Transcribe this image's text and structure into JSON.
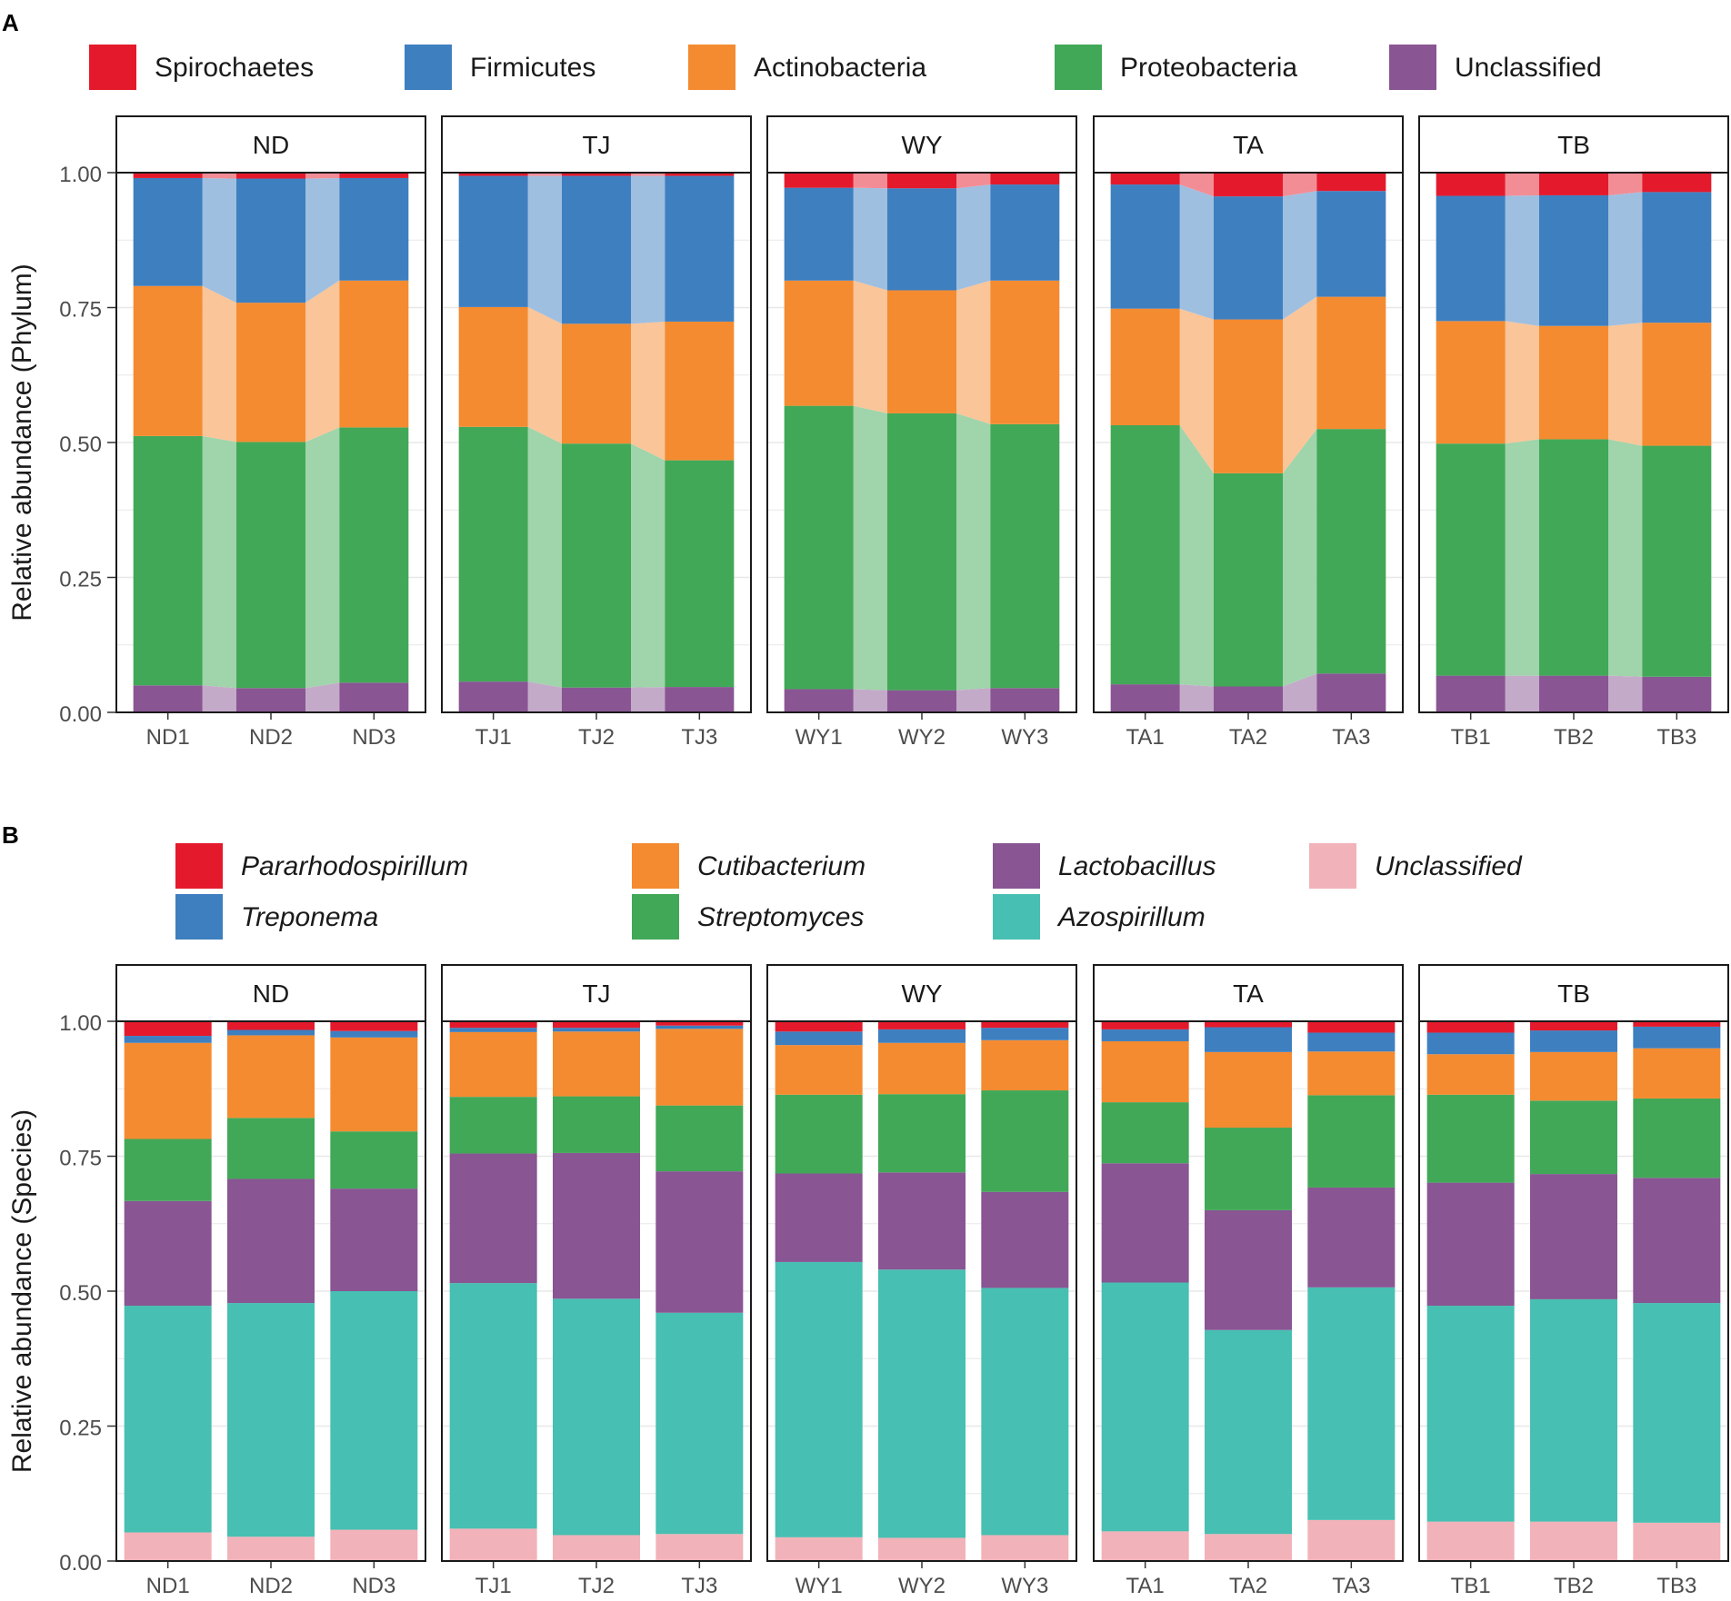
{
  "figure": {
    "panels": [
      {
        "label": "A",
        "ylabel": "Relative abundance (Phylum)",
        "yticks": [
          "0.00",
          "0.25",
          "0.50",
          "0.75",
          "1.00"
        ],
        "legend": [
          {
            "name": "Spirochaetes",
            "color": "#E41A2C",
            "italic": false
          },
          {
            "name": "Firmicutes",
            "color": "#3E7FC0",
            "italic": false
          },
          {
            "name": "Actinobacteria",
            "color": "#F48B30",
            "italic": false
          },
          {
            "name": "Proteobacteria",
            "color": "#41A857",
            "italic": false
          },
          {
            "name": "Unclassified",
            "color": "#895593",
            "italic": false
          }
        ]
      },
      {
        "label": "B",
        "ylabel": "Relative abundance (Species)",
        "yticks": [
          "0.00",
          "0.25",
          "0.50",
          "0.75",
          "1.00"
        ],
        "legend": [
          {
            "name": "Pararhodospirillum",
            "color": "#E41A2C",
            "italic": true
          },
          {
            "name": "Treponema",
            "color": "#3E7FC0",
            "italic": true
          },
          {
            "name": "Cutibacterium",
            "color": "#F48B30",
            "italic": true
          },
          {
            "name": "Streptomyces",
            "color": "#41A857",
            "italic": true
          },
          {
            "name": "Lactobacillus",
            "color": "#895593",
            "italic": true
          },
          {
            "name": "Azospirillum",
            "color": "#47BFB2",
            "italic": true
          },
          {
            "name": "Unclassified",
            "color": "#F2B2B9",
            "italic": true
          }
        ]
      }
    ]
  },
  "chart_data": [
    {
      "type": "bar",
      "subtype": "stacked-alluvial",
      "panel": "A",
      "ylabel": "Relative abundance (Phylum)",
      "ylim": [
        0,
        1
      ],
      "facets": [
        "ND",
        "TJ",
        "WY",
        "TA",
        "TB"
      ],
      "categories": [
        [
          "ND1",
          "ND2",
          "ND3"
        ],
        [
          "TJ1",
          "TJ2",
          "TJ3"
        ],
        [
          "WY1",
          "WY2",
          "WY3"
        ],
        [
          "TA1",
          "TA2",
          "TA3"
        ],
        [
          "TB1",
          "TB2",
          "TB3"
        ]
      ],
      "series": [
        {
          "name": "Unclassified",
          "color": "#895593",
          "values": [
            [
              0.05,
              0.045,
              0.055
            ],
            [
              0.057,
              0.046,
              0.047
            ],
            [
              0.043,
              0.041,
              0.045
            ],
            [
              0.052,
              0.048,
              0.072
            ],
            [
              0.068,
              0.068,
              0.066
            ]
          ]
        },
        {
          "name": "Proteobacteria",
          "color": "#41A857",
          "values": [
            [
              0.462,
              0.456,
              0.473
            ],
            [
              0.472,
              0.452,
              0.42
            ],
            [
              0.525,
              0.513,
              0.489
            ],
            [
              0.48,
              0.395,
              0.453
            ],
            [
              0.43,
              0.438,
              0.428
            ]
          ]
        },
        {
          "name": "Actinobacteria",
          "color": "#F48B30",
          "values": [
            [
              0.278,
              0.258,
              0.272
            ],
            [
              0.222,
              0.222,
              0.257
            ],
            [
              0.232,
              0.228,
              0.266
            ],
            [
              0.216,
              0.285,
              0.245
            ],
            [
              0.227,
              0.21,
              0.228
            ]
          ]
        },
        {
          "name": "Firmicutes",
          "color": "#3E7FC0",
          "values": [
            [
              0.2,
              0.23,
              0.19
            ],
            [
              0.243,
              0.274,
              0.27
            ],
            [
              0.172,
              0.189,
              0.178
            ],
            [
              0.23,
              0.228,
              0.196
            ],
            [
              0.232,
              0.242,
              0.242
            ]
          ]
        },
        {
          "name": "Spirochaetes",
          "color": "#E41A2C",
          "values": [
            [
              0.01,
              0.011,
              0.01
            ],
            [
              0.006,
              0.006,
              0.006
            ],
            [
              0.028,
              0.029,
              0.022
            ],
            [
              0.022,
              0.044,
              0.034
            ],
            [
              0.043,
              0.042,
              0.038
            ]
          ]
        }
      ]
    },
    {
      "type": "bar",
      "subtype": "stacked",
      "panel": "B",
      "ylabel": "Relative abundance (Species)",
      "ylim": [
        0,
        1
      ],
      "facets": [
        "ND",
        "TJ",
        "WY",
        "TA",
        "TB"
      ],
      "categories": [
        [
          "ND1",
          "ND2",
          "ND3"
        ],
        [
          "TJ1",
          "TJ2",
          "TJ3"
        ],
        [
          "WY1",
          "WY2",
          "WY3"
        ],
        [
          "TA1",
          "TA2",
          "TA3"
        ],
        [
          "TB1",
          "TB2",
          "TB3"
        ]
      ],
      "series": [
        {
          "name": "Unclassified",
          "color": "#F2B2B9",
          "values": [
            [
              0.053,
              0.045,
              0.058
            ],
            [
              0.06,
              0.048,
              0.05
            ],
            [
              0.044,
              0.043,
              0.048
            ],
            [
              0.055,
              0.05,
              0.076
            ],
            [
              0.073,
              0.073,
              0.071
            ]
          ]
        },
        {
          "name": "Azospirillum",
          "color": "#47BFB2",
          "values": [
            [
              0.42,
              0.433,
              0.442
            ],
            [
              0.455,
              0.438,
              0.41
            ],
            [
              0.51,
              0.497,
              0.458
            ],
            [
              0.461,
              0.378,
              0.431
            ],
            [
              0.4,
              0.412,
              0.407
            ]
          ]
        },
        {
          "name": "Lactobacillus",
          "color": "#895593",
          "values": [
            [
              0.194,
              0.23,
              0.19
            ],
            [
              0.24,
              0.27,
              0.262
            ],
            [
              0.164,
              0.18,
              0.178
            ],
            [
              0.221,
              0.222,
              0.185
            ],
            [
              0.228,
              0.232,
              0.232
            ]
          ]
        },
        {
          "name": "Streptomyces",
          "color": "#41A857",
          "values": [
            [
              0.115,
              0.113,
              0.106
            ],
            [
              0.105,
              0.105,
              0.122
            ],
            [
              0.146,
              0.145,
              0.188
            ],
            [
              0.113,
              0.153,
              0.171
            ],
            [
              0.163,
              0.136,
              0.147
            ]
          ]
        },
        {
          "name": "Cutibacterium",
          "color": "#F48B30",
          "values": [
            [
              0.178,
              0.153,
              0.174
            ],
            [
              0.12,
              0.12,
              0.142
            ],
            [
              0.092,
              0.095,
              0.093
            ],
            [
              0.113,
              0.14,
              0.081
            ],
            [
              0.075,
              0.09,
              0.093
            ]
          ]
        },
        {
          "name": "Treponema",
          "color": "#3E7FC0",
          "values": [
            [
              0.013,
              0.01,
              0.012
            ],
            [
              0.008,
              0.007,
              0.006
            ],
            [
              0.025,
              0.025,
              0.023
            ],
            [
              0.022,
              0.046,
              0.035
            ],
            [
              0.04,
              0.04,
              0.04
            ]
          ]
        },
        {
          "name": "Pararhodospirillum",
          "color": "#E41A2C",
          "values": [
            [
              0.027,
              0.016,
              0.018
            ],
            [
              0.012,
              0.012,
              0.01
            ],
            [
              0.019,
              0.015,
              0.012
            ],
            [
              0.015,
              0.011,
              0.021
            ],
            [
              0.021,
              0.017,
              0.01
            ]
          ]
        }
      ]
    }
  ]
}
